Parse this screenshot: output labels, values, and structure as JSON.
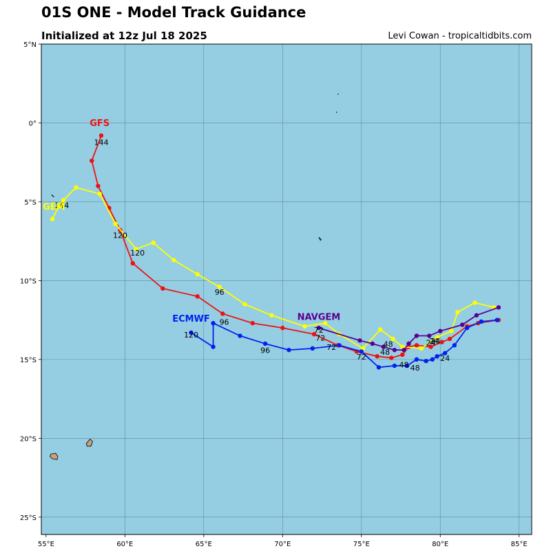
{
  "header": {
    "title": "01S ONE - Model Track Guidance",
    "subtitle": "Initialized at 12z Jul 18 2025",
    "credit": "Levi Cowan - tropicaltidbits.com"
  },
  "map": {
    "lon_range": [
      54.7,
      85.8
    ],
    "lat_range": [
      -26.1,
      5.0
    ],
    "ocean_color": "#95cee3",
    "land_color": "#c8a07a",
    "grid_lons": [
      60,
      65,
      70,
      75,
      80,
      85
    ],
    "grid_lats": [
      0,
      -5,
      -10,
      -15,
      -20,
      -25
    ],
    "lon_ticks": [
      {
        "lon": 55,
        "label": "55°E"
      },
      {
        "lon": 60,
        "label": "60°E"
      },
      {
        "lon": 65,
        "label": "65°E"
      },
      {
        "lon": 70,
        "label": "70°E"
      },
      {
        "lon": 75,
        "label": "75°E"
      },
      {
        "lon": 80,
        "label": "80°E"
      },
      {
        "lon": 85,
        "label": "85°E"
      }
    ],
    "lat_ticks": [
      {
        "lat": 5,
        "label": "5°N"
      },
      {
        "lat": 0,
        "label": "0°"
      },
      {
        "lat": -5,
        "label": "5°S"
      },
      {
        "lat": -10,
        "label": "10°S"
      },
      {
        "lat": -15,
        "label": "15°S"
      },
      {
        "lat": -20,
        "label": "20°S"
      },
      {
        "lat": -25,
        "label": "25°S"
      }
    ],
    "islands": [
      {
        "name": "reunion",
        "points": [
          [
            55.3,
            -21.0
          ],
          [
            55.6,
            -20.95
          ],
          [
            55.75,
            -21.15
          ],
          [
            55.7,
            -21.35
          ],
          [
            55.4,
            -21.3
          ],
          [
            55.25,
            -21.15
          ]
        ]
      },
      {
        "name": "mauritius",
        "points": [
          [
            57.8,
            -20.05
          ],
          [
            57.95,
            -20.2
          ],
          [
            57.85,
            -20.5
          ],
          [
            57.6,
            -20.5
          ],
          [
            57.55,
            -20.35
          ],
          [
            57.7,
            -20.15
          ]
        ]
      },
      {
        "name": "chagos",
        "points": [
          [
            72.3,
            -7.25
          ],
          [
            72.45,
            -7.4
          ],
          [
            72.4,
            -7.45
          ]
        ]
      },
      {
        "name": "seychelles-outer",
        "points": [
          [
            55.35,
            -4.55
          ],
          [
            55.5,
            -4.7
          ]
        ]
      },
      {
        "name": "maldives-south",
        "points": [
          [
            73.4,
            0.7
          ],
          [
            73.45,
            0.65
          ]
        ]
      },
      {
        "name": "maldives-south-2",
        "points": [
          [
            73.5,
            1.8
          ],
          [
            73.55,
            1.85
          ]
        ]
      }
    ]
  },
  "chart_data": {
    "type": "scatter",
    "title": "01S ONE - Model Track Guidance",
    "series": [
      {
        "name": "GFS",
        "color": "#ee1111",
        "label_pos": [
          58.4,
          -0.2
        ],
        "points": [
          [
            83.7,
            -12.5
          ],
          [
            82.4,
            -12.7
          ],
          [
            81.7,
            -12.9
          ],
          [
            80.6,
            -13.7
          ],
          [
            80.1,
            -13.9
          ],
          [
            79.4,
            -14.2
          ],
          [
            78.5,
            -14.1
          ],
          [
            78.0,
            -14.2
          ],
          [
            77.6,
            -14.7
          ],
          [
            76.9,
            -14.9
          ],
          [
            76.0,
            -14.8
          ],
          [
            74.7,
            -14.5
          ],
          [
            73.5,
            -14.1
          ],
          [
            72.0,
            -13.4
          ],
          [
            70.0,
            -13.0
          ],
          [
            68.1,
            -12.7
          ],
          [
            66.2,
            -12.1
          ],
          [
            64.6,
            -11.0
          ],
          [
            62.4,
            -10.5
          ],
          [
            60.5,
            -8.9
          ],
          [
            59.7,
            -6.8
          ],
          [
            59.0,
            -5.4
          ],
          [
            58.3,
            -4.0
          ],
          [
            57.9,
            -2.4
          ],
          [
            58.5,
            -0.8
          ]
        ],
        "hour_labels": [
          {
            "text": "24",
            "at": [
              79.6,
              -14.0
            ]
          },
          {
            "text": "48",
            "at": [
              76.5,
              -14.7
            ]
          },
          {
            "text": "72",
            "at": [
              72.4,
              -13.8
            ]
          },
          {
            "text": "96",
            "at": [
              66.3,
              -12.8
            ]
          },
          {
            "text": "120",
            "at": [
              60.8,
              -8.4
            ]
          },
          {
            "text": "144",
            "at": [
              58.5,
              -1.4
            ]
          }
        ]
      },
      {
        "name": "GEM",
        "color": "#ffff00",
        "label_pos": [
          55.5,
          -5.5
        ],
        "points": [
          [
            83.4,
            -11.7
          ],
          [
            82.2,
            -11.4
          ],
          [
            81.1,
            -12.0
          ],
          [
            80.7,
            -13.2
          ],
          [
            79.8,
            -13.6
          ],
          [
            78.8,
            -14.3
          ],
          [
            77.6,
            -14.2
          ],
          [
            77.0,
            -13.7
          ],
          [
            76.2,
            -13.1
          ],
          [
            75.1,
            -14.3
          ],
          [
            73.6,
            -13.4
          ],
          [
            72.7,
            -12.7
          ],
          [
            71.4,
            -12.9
          ],
          [
            69.3,
            -12.2
          ],
          [
            67.6,
            -11.5
          ],
          [
            66.0,
            -10.4
          ],
          [
            64.6,
            -9.6
          ],
          [
            63.1,
            -8.7
          ],
          [
            61.8,
            -7.6
          ],
          [
            60.7,
            -8.0
          ],
          [
            59.4,
            -6.4
          ],
          [
            58.4,
            -4.5
          ],
          [
            56.9,
            -4.1
          ],
          [
            56.1,
            -4.9
          ],
          [
            55.8,
            -5.3
          ],
          [
            55.4,
            -6.1
          ]
        ],
        "hour_labels": [
          {
            "text": "24",
            "at": [
              79.4,
              -14.1
            ]
          },
          {
            "text": "96",
            "at": [
              66.0,
              -10.9
            ]
          },
          {
            "text": "120",
            "at": [
              59.7,
              -7.3
            ]
          },
          {
            "text": "144",
            "at": [
              56.0,
              -5.4
            ]
          }
        ]
      },
      {
        "name": "ECMWF",
        "color": "#0022ee",
        "label_pos": [
          64.2,
          -12.6
        ],
        "points": [
          [
            83.6,
            -12.5
          ],
          [
            82.6,
            -12.6
          ],
          [
            81.7,
            -13.0
          ],
          [
            80.9,
            -14.1
          ],
          [
            80.3,
            -14.6
          ],
          [
            79.8,
            -14.8
          ],
          [
            79.5,
            -15.0
          ],
          [
            79.1,
            -15.1
          ],
          [
            78.5,
            -15.0
          ],
          [
            77.9,
            -15.4
          ],
          [
            77.1,
            -15.4
          ],
          [
            76.1,
            -15.5
          ],
          [
            75.0,
            -14.5
          ],
          [
            73.6,
            -14.1
          ],
          [
            71.9,
            -14.3
          ],
          [
            70.4,
            -14.4
          ],
          [
            68.9,
            -14.0
          ],
          [
            67.3,
            -13.5
          ],
          [
            65.6,
            -12.7
          ],
          [
            65.6,
            -14.2
          ],
          [
            64.2,
            -13.3
          ]
        ],
        "hour_labels": [
          {
            "text": "24",
            "at": [
              80.3,
              -15.1
            ]
          },
          {
            "text": "48",
            "at": [
              77.7,
              -15.5
            ]
          },
          {
            "text": "48",
            "at": [
              78.4,
              -15.7
            ]
          },
          {
            "text": "72",
            "at": [
              75.0,
              -15.0
            ]
          },
          {
            "text": "72",
            "at": [
              73.1,
              -14.4
            ]
          },
          {
            "text": "96",
            "at": [
              68.9,
              -14.6
            ]
          },
          {
            "text": "120",
            "at": [
              64.2,
              -13.6
            ]
          }
        ]
      },
      {
        "name": "NAVGEM",
        "color": "#5a0090",
        "label_pos": [
          72.3,
          -12.5
        ],
        "points": [
          [
            83.7,
            -11.7
          ],
          [
            82.3,
            -12.2
          ],
          [
            81.4,
            -12.8
          ],
          [
            80.0,
            -13.2
          ],
          [
            79.3,
            -13.5
          ],
          [
            78.5,
            -13.5
          ],
          [
            78.0,
            -14.0
          ],
          [
            77.7,
            -14.4
          ],
          [
            77.1,
            -14.4
          ],
          [
            76.4,
            -14.2
          ],
          [
            75.7,
            -14.0
          ],
          [
            74.9,
            -13.8
          ],
          [
            72.3,
            -13.0
          ]
        ],
        "hour_labels": [
          {
            "text": "24",
            "at": [
              79.7,
              -14.0
            ]
          },
          {
            "text": "48",
            "at": [
              76.7,
              -14.2
            ]
          },
          {
            "text": "72",
            "at": [
              72.3,
              -13.3
            ]
          }
        ]
      }
    ]
  }
}
